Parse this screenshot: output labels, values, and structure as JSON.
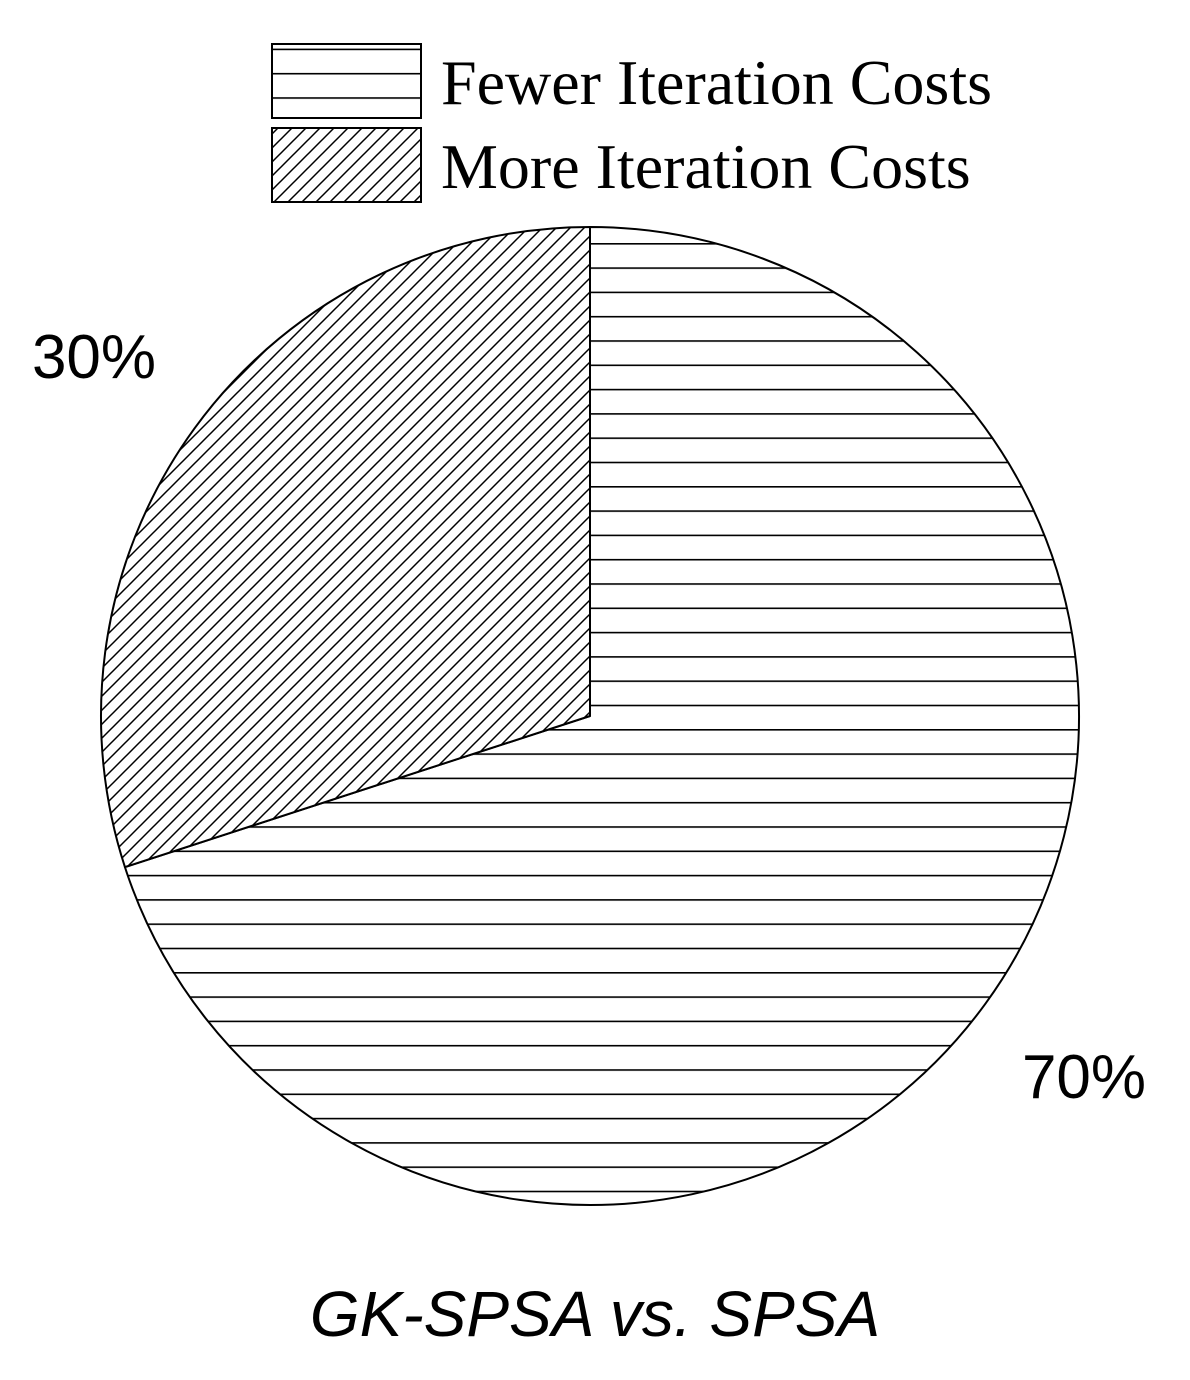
{
  "chart_data": {
    "type": "pie",
    "title": "",
    "xlabel": "GK-SPSA vs. SPSA",
    "categories": [
      "Fewer Iteration Costs",
      "More Iteration Costs"
    ],
    "values": [
      70,
      30
    ],
    "value_labels": [
      "70%",
      "30%"
    ],
    "series": [
      {
        "name": "Fewer Iteration Costs",
        "value": 70,
        "pattern": "horizontal-lines"
      },
      {
        "name": "More Iteration Costs",
        "value": 30,
        "pattern": "diagonal-lines"
      }
    ],
    "legend_position": "top-right",
    "start_angle": "12 o'clock",
    "direction": "clockwise"
  },
  "colors": {
    "stroke": "#000000",
    "background": "#ffffff"
  }
}
